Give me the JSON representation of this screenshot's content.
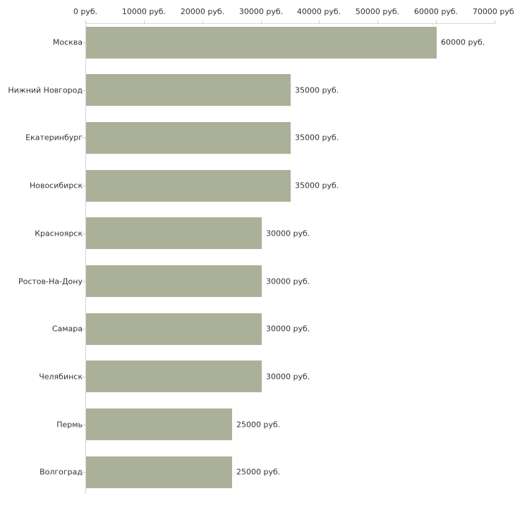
{
  "chart_data": {
    "type": "bar",
    "orientation": "horizontal",
    "title": "",
    "xlabel": "",
    "ylabel": "",
    "unit": "руб.",
    "categories": [
      "Москва",
      "Нижний Новгород",
      "Екатеринбург",
      "Новосибирск",
      "Красноярск",
      "Ростов-На-Дону",
      "Самара",
      "Челябинск",
      "Пермь",
      "Волгоград"
    ],
    "values": [
      60000,
      35000,
      35000,
      35000,
      30000,
      30000,
      30000,
      30000,
      25000,
      25000
    ],
    "value_labels": [
      "60000 руб.",
      "35000 руб.",
      "35000 руб.",
      "35000 руб.",
      "30000 руб.",
      "30000 руб.",
      "30000 руб.",
      "30000 руб.",
      "25000 руб.",
      "25000 руб."
    ],
    "x_tick_values": [
      0,
      10000,
      20000,
      30000,
      40000,
      50000,
      60000,
      70000
    ],
    "x_tick_labels": [
      "0 руб.",
      "10000 руб.",
      "20000 руб.",
      "30000 руб.",
      "40000 руб.",
      "50000 руб.",
      "60000 руб.",
      "70000 руб."
    ],
    "xlim": [
      0,
      70000
    ],
    "grid": false,
    "legend_position": "none",
    "colors": {
      "bar": "#abb199",
      "axis": "#d5d5d5",
      "tick": "#ccd1ab",
      "text": "#333333",
      "background": "#ffffff"
    }
  }
}
